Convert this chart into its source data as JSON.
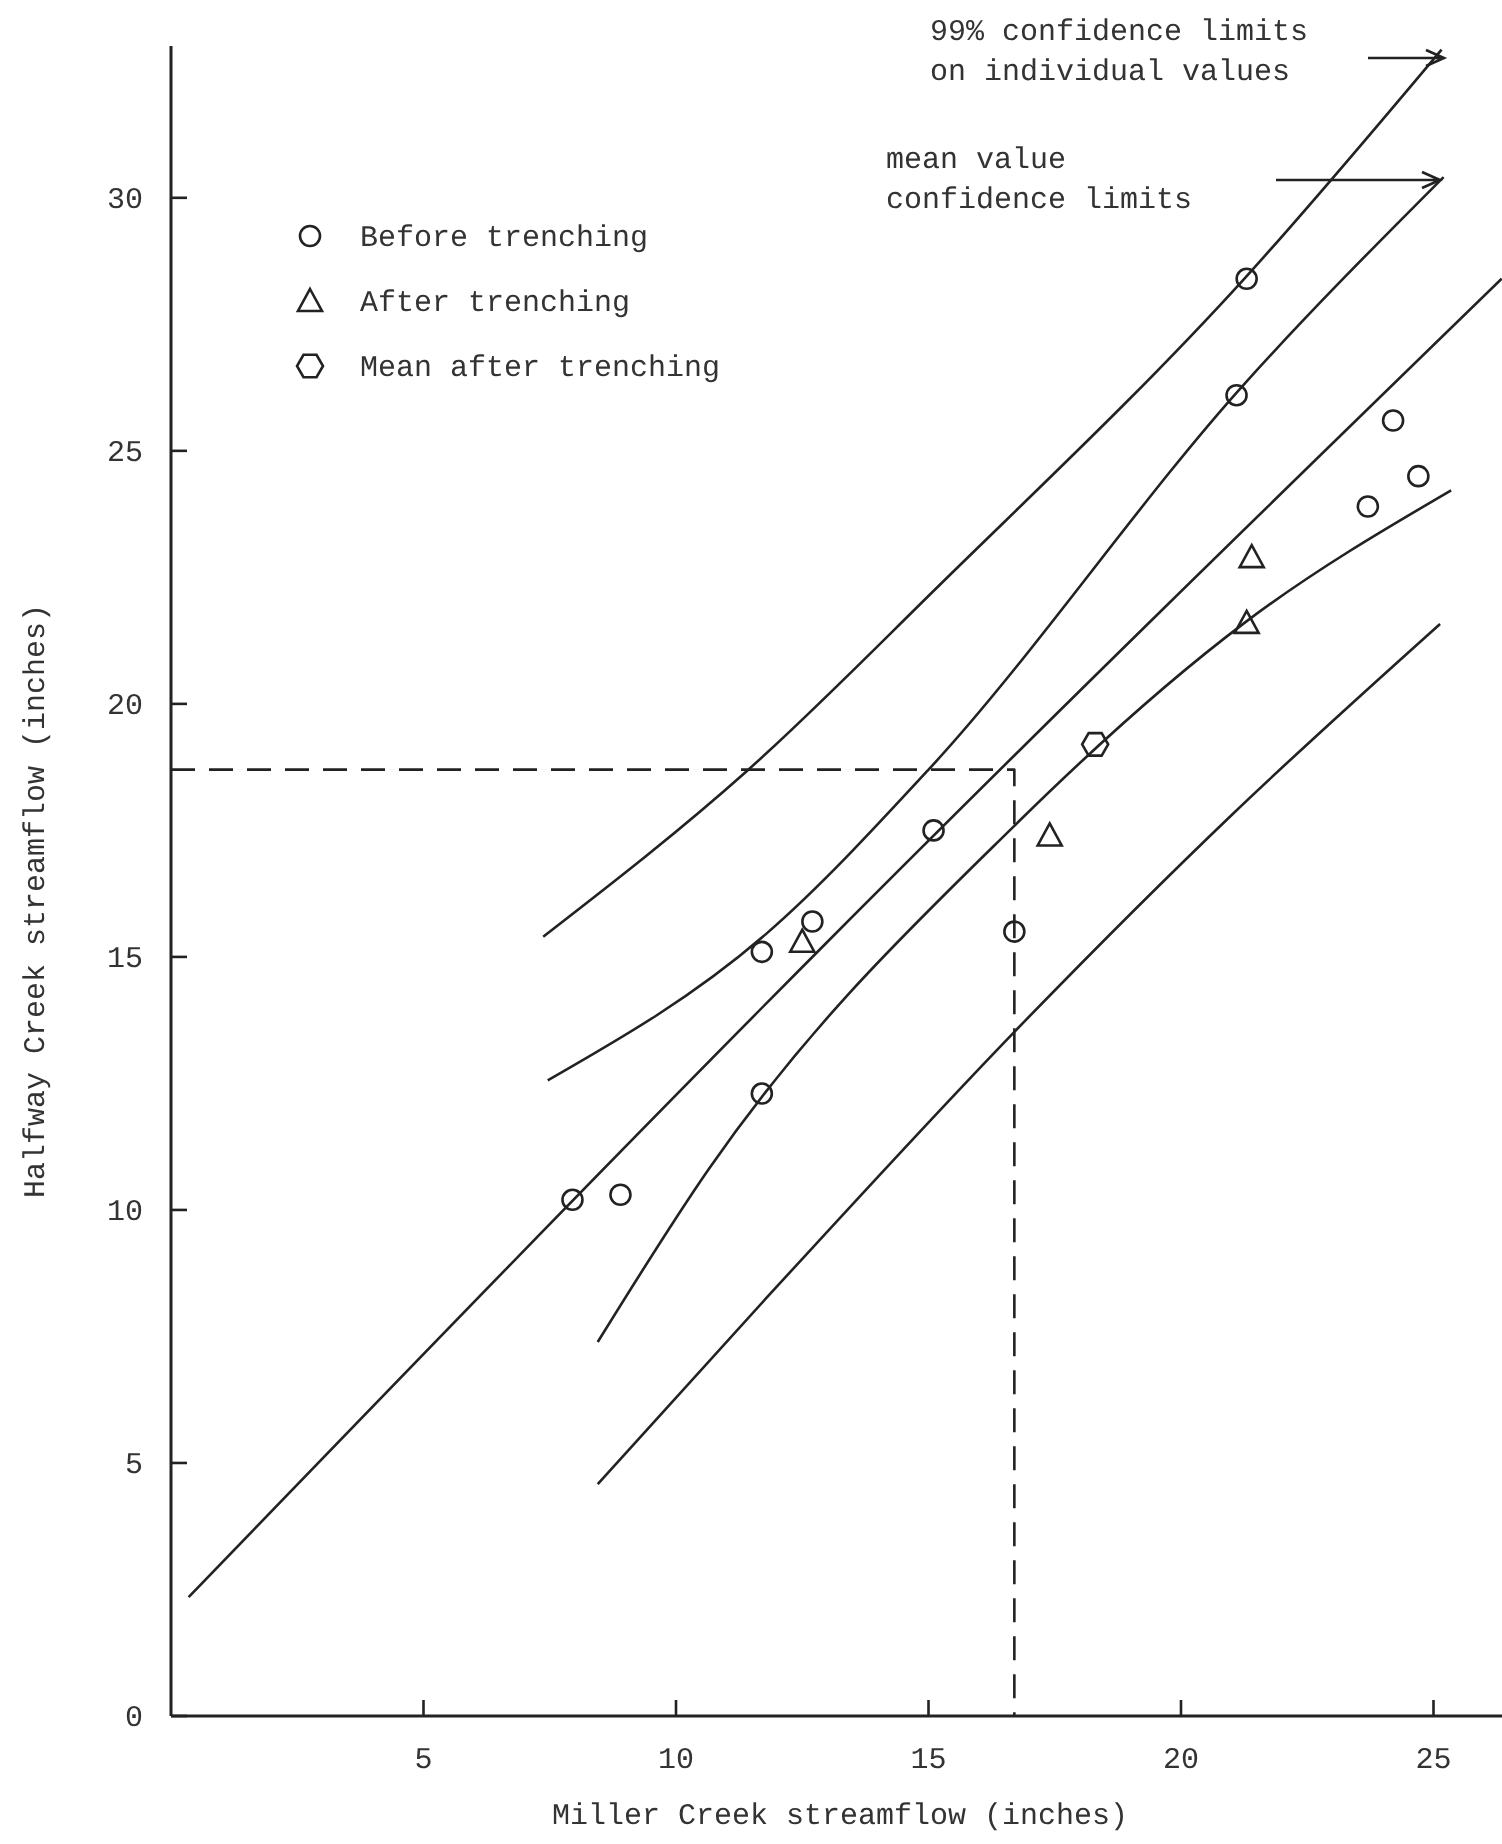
{
  "chart_data": {
    "type": "scatter",
    "xlabel": "Miller Creek streamflow (inches)",
    "ylabel": "Halfway Creek streamflow (inches)",
    "xlim": [
      0,
      26.4
    ],
    "ylim": [
      0,
      33
    ],
    "xticks": [
      5,
      10,
      15,
      20,
      25
    ],
    "yticks": [
      0,
      5,
      10,
      15,
      20,
      25,
      30
    ],
    "grid": false,
    "legend": "top left",
    "annotations": [
      "99% confidence limits\non individual values",
      "mean value\nconfidence limits"
    ],
    "series": [
      {
        "name": "Before trenching",
        "marker": "circle",
        "color": "#222222",
        "x": [
          7.95,
          8.9,
          11.7,
          12.7,
          11.7,
          15.1,
          16.7,
          21.3,
          21.1,
          24.2,
          24.7,
          23.7
        ],
        "values": [
          10.2,
          10.3,
          15.1,
          15.7,
          12.3,
          17.5,
          15.5,
          28.4,
          26.1,
          25.6,
          24.5,
          23.9
        ]
      },
      {
        "name": "After trenching",
        "marker": "triangle",
        "color": "#222222",
        "x": [
          12.5,
          17.4,
          21.4,
          21.3
        ],
        "values": [
          15.3,
          17.4,
          22.9,
          21.6
        ]
      },
      {
        "name": "Mean after trenching",
        "color": "#222222",
        "x": [
          18.3
        ],
        "values": [
          19.2
        ]
      },
      {
        "type": "line",
        "marker": "none",
        "line_style": "solid",
        "color": "#222222",
        "x": [
          0.35,
          13,
          26.35
        ],
        "values": [
          2.35,
          15.3,
          28.4
        ]
      },
      {
        "type": "line",
        "marker": "none",
        "line_style": "solid",
        "color": "#222222",
        "x": [
          7.37,
          11.41,
          15.2,
          21.27,
          25.16
        ],
        "values": [
          15.4,
          18.68,
          22.33,
          28.42,
          32.93
        ]
      },
      {
        "type": "line",
        "marker": "none",
        "line_style": "solid",
        "color": "#222222",
        "x": [
          7.46,
          11.78,
          15.01,
          21.27,
          25.2
        ],
        "values": [
          12.56,
          15.45,
          18.71,
          26.34,
          30.41
        ]
      },
      {
        "type": "line",
        "marker": "none",
        "line_style": "solid",
        "color": "#222222",
        "x": [
          8.45,
          10.65,
          16.74,
          21.27,
          25.35
        ],
        "values": [
          7.39,
          10.81,
          17.63,
          21.61,
          24.22
        ]
      },
      {
        "type": "line",
        "marker": "none",
        "line_style": "solid",
        "color": "#222222",
        "x": [
          8.45,
          11.79,
          16.74,
          21.04,
          25.13
        ],
        "values": [
          4.58,
          8.26,
          13.56,
          17.84,
          21.58
        ]
      },
      {
        "type": "line",
        "marker": "none",
        "line_style": "dashed",
        "color": "#222222",
        "x": [
          0,
          16.7,
          16.7
        ],
        "values": [
          18.7,
          18.7,
          0
        ]
      }
    ]
  }
}
